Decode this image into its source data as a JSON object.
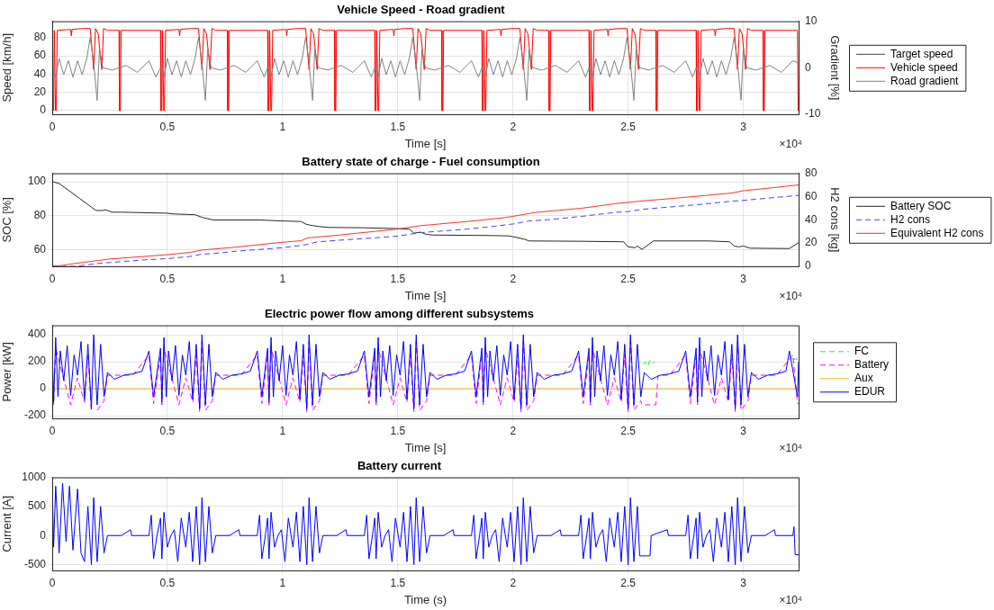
{
  "chart_data": [
    {
      "type": "line",
      "title": "Vehicle Speed - Road gradient",
      "xlabel": "Time [s]",
      "ylabel": "Speed [km/h]",
      "y2label": "Gradient [%]",
      "xlim": [
        0,
        3.24
      ],
      "xticks": [
        0,
        0.5,
        1,
        1.5,
        2,
        2.5,
        3
      ],
      "ylim": [
        -4,
        98
      ],
      "yticks": [
        0,
        20,
        40,
        60,
        80
      ],
      "y2lim": [
        -10,
        10
      ],
      "y2ticks": [
        -10,
        0,
        10
      ],
      "grid": true,
      "legend": "right",
      "annotations": [
        "×10⁴"
      ],
      "series": [
        {
          "name": "Target speed",
          "color": "#404040"
        },
        {
          "name": "Vehicle speed",
          "color": "#ff0000",
          "x": [
            0,
            0.002,
            0.006,
            0.009,
            0.014,
            0.017,
            0.022,
            0.08,
            0.083,
            0.086,
            0.13,
            0.165,
            0.18,
            0.188,
            0.2,
            0.215,
            0.223,
            0.24,
            0.29,
            0.292,
            0.296,
            0.299,
            0.47,
            0.472,
            0.476,
            0.479,
            0.484,
            0.487,
            0.492,
            0.55,
            0.553,
            0.556,
            0.6,
            0.635,
            0.65,
            0.658,
            0.67,
            0.685,
            0.693,
            0.71,
            0.76,
            0.762,
            0.766,
            0.769,
            0.935,
            0.937,
            0.941,
            0.944,
            0.949,
            0.952,
            0.957,
            1.015,
            1.018,
            1.021,
            1.065,
            1.1,
            1.115,
            1.123,
            1.135,
            1.15,
            1.158,
            1.175,
            1.225,
            1.227,
            1.231,
            1.234,
            1.4,
            1.402,
            1.406,
            1.409,
            1.414,
            1.417,
            1.422,
            1.48,
            1.483,
            1.486,
            1.53,
            1.565,
            1.58,
            1.588,
            1.6,
            1.615,
            1.623,
            1.64,
            1.69,
            1.692,
            1.696,
            1.699,
            1.865,
            1.867,
            1.871,
            1.874,
            1.879,
            1.882,
            1.887,
            1.945,
            1.948,
            1.951,
            1.995,
            2.03,
            2.045,
            2.053,
            2.065,
            2.08,
            2.088,
            2.105,
            2.155,
            2.157,
            2.161,
            2.164,
            2.33,
            2.332,
            2.336,
            2.339,
            2.344,
            2.347,
            2.352,
            2.41,
            2.413,
            2.416,
            2.46,
            2.495,
            2.51,
            2.518,
            2.53,
            2.545,
            2.553,
            2.57,
            2.62,
            2.622,
            2.626,
            2.629,
            2.795,
            2.797,
            2.801,
            2.804,
            2.809,
            2.812,
            2.817,
            2.875,
            2.878,
            2.881,
            2.925,
            2.96,
            2.975,
            2.983,
            2.995,
            3.01,
            3.018,
            3.035,
            3.085,
            3.087,
            3.091,
            3.094,
            3.235,
            3.238,
            3.24
          ],
          "values": [
            88,
            0,
            0,
            88,
            0,
            0,
            88,
            89,
            82,
            89,
            90,
            90,
            45,
            90,
            84,
            45,
            90,
            88,
            88,
            0,
            0,
            88,
            88,
            0,
            0,
            88,
            0,
            0,
            88,
            89,
            82,
            89,
            90,
            90,
            45,
            90,
            84,
            45,
            90,
            88,
            88,
            0,
            0,
            88,
            88,
            0,
            0,
            88,
            0,
            0,
            88,
            89,
            82,
            89,
            90,
            90,
            45,
            90,
            84,
            45,
            90,
            88,
            88,
            0,
            0,
            88,
            88,
            0,
            0,
            88,
            0,
            0,
            88,
            89,
            82,
            89,
            90,
            90,
            45,
            90,
            84,
            45,
            90,
            88,
            88,
            0,
            0,
            88,
            88,
            0,
            0,
            88,
            0,
            0,
            88,
            89,
            82,
            89,
            90,
            90,
            45,
            90,
            84,
            45,
            90,
            88,
            88,
            0,
            0,
            88,
            88,
            0,
            0,
            88,
            0,
            0,
            88,
            89,
            82,
            89,
            90,
            90,
            45,
            90,
            84,
            45,
            90,
            88,
            88,
            0,
            0,
            88,
            88,
            0,
            0,
            88,
            0,
            0,
            88,
            89,
            82,
            89,
            90,
            90,
            45,
            90,
            84,
            45,
            90,
            88,
            88,
            0,
            0,
            88,
            88,
            0,
            0
          ]
        },
        {
          "name": "Road gradient",
          "color": "#808080",
          "axis": "y2",
          "x": [
            0,
            0.015,
            0.03,
            0.05,
            0.07,
            0.09,
            0.11,
            0.13,
            0.15,
            0.165,
            0.18,
            0.195,
            0.205,
            0.22,
            0.26,
            0.32,
            0.37,
            0.42,
            0.45,
            0.47,
            0.485,
            0.5,
            0.52,
            0.54,
            0.56,
            0.58,
            0.6,
            0.62,
            0.635,
            0.65,
            0.665,
            0.675,
            0.69,
            0.73,
            0.79,
            0.84,
            0.89,
            0.92,
            0.935,
            0.95,
            0.965,
            0.985,
            1.005,
            1.025,
            1.045,
            1.065,
            1.085,
            1.1,
            1.115,
            1.13,
            1.14,
            1.155,
            1.195,
            1.255,
            1.305,
            1.355,
            1.385,
            1.4,
            1.415,
            1.43,
            1.45,
            1.47,
            1.49,
            1.51,
            1.53,
            1.55,
            1.565,
            1.58,
            1.595,
            1.605,
            1.62,
            1.66,
            1.72,
            1.77,
            1.82,
            1.85,
            1.865,
            1.88,
            1.895,
            1.915,
            1.935,
            1.955,
            1.975,
            1.995,
            2.015,
            2.03,
            2.045,
            2.06,
            2.07,
            2.085,
            2.125,
            2.185,
            2.235,
            2.285,
            2.315,
            2.33,
            2.345,
            2.36,
            2.38,
            2.4,
            2.42,
            2.44,
            2.46,
            2.48,
            2.495,
            2.51,
            2.525,
            2.535,
            2.55,
            2.59,
            2.65,
            2.7,
            2.75,
            2.78,
            2.795,
            2.81,
            2.825,
            2.845,
            2.865,
            2.885,
            2.905,
            2.925,
            2.945,
            2.96,
            2.975,
            2.99,
            3,
            3.015,
            3.055,
            3.115,
            3.165,
            3.215,
            3.24
          ],
          "values": [
            0,
            -2,
            2,
            -1.5,
            1.5,
            -2,
            1.5,
            -1.5,
            2,
            6.5,
            1,
            -7,
            4,
            0,
            -0.5,
            0.5,
            -1,
            1.5,
            -2,
            0,
            -2,
            2,
            -1.5,
            1.5,
            -2,
            1.5,
            -1.5,
            2,
            6.5,
            1,
            -7,
            4,
            0,
            -0.5,
            0.5,
            -1,
            1.5,
            -2,
            0,
            -2,
            2,
            -1.5,
            1.5,
            -2,
            1.5,
            -1.5,
            2,
            6.5,
            1,
            -7,
            4,
            0,
            -0.5,
            0.5,
            -1,
            1.5,
            -2,
            0,
            -2,
            2,
            -1.5,
            1.5,
            -2,
            1.5,
            -1.5,
            2,
            6.5,
            1,
            -7,
            4,
            0,
            -0.5,
            0.5,
            -1,
            1.5,
            -2,
            0,
            -2,
            2,
            -1.5,
            1.5,
            -2,
            1.5,
            -1.5,
            2,
            6.5,
            1,
            -7,
            4,
            0,
            -0.5,
            0.5,
            -1,
            1.5,
            -2,
            0,
            -2,
            2,
            -1.5,
            1.5,
            -2,
            1.5,
            -1.5,
            2,
            6.5,
            1,
            -7,
            4,
            0,
            -0.5,
            0.5,
            -1,
            1.5,
            -2,
            0,
            -2,
            2,
            -1.5,
            1.5,
            -2,
            1.5,
            -1.5,
            2,
            6.5,
            1,
            -7,
            4,
            0,
            -0.5,
            0.5,
            -1,
            1.5,
            1
          ]
        }
      ]
    },
    {
      "type": "line",
      "title": "Battery state of charge - Fuel consumption",
      "xlabel": "Time [s]",
      "ylabel": "SOC [%]",
      "y2label": "H2 cons [kg]",
      "xlim": [
        0,
        3.24
      ],
      "xticks": [
        0,
        0.5,
        1,
        1.5,
        2,
        2.5,
        3
      ],
      "ylim": [
        50,
        105
      ],
      "yticks": [
        60,
        80,
        100
      ],
      "y2lim": [
        0,
        80
      ],
      "y2ticks": [
        0,
        20,
        40,
        60,
        80
      ],
      "grid": true,
      "legend": "right",
      "annotations": [
        "×10⁴"
      ],
      "series": [
        {
          "name": "Battery SOC",
          "color": "#262626",
          "x": [
            0,
            0.03,
            0.07,
            0.12,
            0.17,
            0.19,
            0.22,
            0.23,
            0.26,
            0.3,
            0.5,
            0.52,
            0.62,
            0.65,
            0.67,
            0.7,
            0.9,
            1,
            1.08,
            1.1,
            1.12,
            1.16,
            1.2,
            1.35,
            1.5,
            1.55,
            1.57,
            1.6,
            1.62,
            1.65,
            1.9,
            1.98,
            2,
            2.05,
            2.07,
            2.3,
            2.48,
            2.5,
            2.53,
            2.54,
            2.56,
            2.59,
            2.61,
            2.85,
            2.94,
            2.96,
            2.98,
            3,
            3.03,
            3.2,
            3.24
          ],
          "values": [
            100,
            99,
            95,
            90,
            85,
            83,
            83,
            83.5,
            82,
            82,
            81.4,
            81,
            80.5,
            79,
            78.3,
            77.4,
            77.4,
            76.8,
            76.5,
            75,
            74.3,
            73.5,
            73,
            72.8,
            72.3,
            72,
            69.6,
            70.2,
            69,
            68.5,
            68.2,
            68,
            67.5,
            66,
            65,
            64.8,
            64.5,
            61.5,
            61,
            62,
            60,
            63,
            65,
            65,
            64.5,
            62,
            61.5,
            62,
            60.7,
            60.5,
            64
          ]
        },
        {
          "name": "H2 cons",
          "color": "#4040ff",
          "axis": "y2",
          "line_style": "dashed",
          "x": [
            0,
            0.1,
            0.2,
            0.3,
            0.4,
            0.5,
            0.6,
            0.65,
            0.7,
            0.8,
            0.9,
            1,
            1.1,
            1.15,
            1.25,
            1.4,
            1.5,
            1.6,
            1.7,
            1.8,
            1.9,
            2,
            2.07,
            2.15,
            2.3,
            2.45,
            2.5,
            2.56,
            2.65,
            2.8,
            2.95,
            3,
            3.1,
            3.24
          ],
          "values": [
            0,
            0,
            2.5,
            4,
            5.5,
            6.6,
            8.5,
            10.5,
            11,
            13,
            14.5,
            16,
            18.5,
            21,
            22.5,
            24.5,
            26,
            29,
            30.5,
            32,
            34,
            36.4,
            39,
            40,
            43,
            46.5,
            47,
            49,
            50.5,
            53,
            56,
            56.7,
            58.5,
            61
          ]
        },
        {
          "name": "Equivalent H2 cons",
          "color": "#ff3030",
          "axis": "y2",
          "x": [
            0,
            0.05,
            0.1,
            0.2,
            0.25,
            0.4,
            0.5,
            0.6,
            0.65,
            0.8,
            1,
            1.08,
            1.11,
            1.2,
            1.5,
            1.6,
            1.8,
            1.95,
            2,
            2.1,
            2.3,
            2.45,
            2.55,
            2.7,
            2.95,
            3,
            3.1,
            3.24
          ],
          "values": [
            0,
            1,
            2.5,
            5,
            6.3,
            8.5,
            10,
            12,
            14,
            16.5,
            20.7,
            22,
            24.5,
            26,
            32,
            35,
            38.5,
            41.5,
            43,
            46.4,
            50,
            54,
            56,
            58.5,
            63,
            65,
            67,
            70
          ]
        }
      ]
    },
    {
      "type": "line",
      "title": "Electric power flow among different subsystems",
      "xlabel": "Time [s]",
      "ylabel": "Power [kW]",
      "xlim": [
        0,
        3.24
      ],
      "xticks": [
        0,
        0.5,
        1,
        1.5,
        2,
        2.5,
        3
      ],
      "ylim": [
        -220,
        470
      ],
      "yticks": [
        -200,
        0,
        200,
        400
      ],
      "grid": true,
      "legend": "right",
      "annotations": [
        "×10⁴"
      ],
      "series": [
        {
          "name": "FC",
          "color": "#00ff00",
          "line_style": "dashed",
          "x": [
            2.565,
            2.575,
            2.585,
            2.595,
            2.605,
            2.615,
            2.62,
            3.212,
            3.235
          ],
          "values": [
            180,
            200,
            170,
            210,
            190,
            200,
            null,
            220,
            220
          ]
        },
        {
          "name": "Battery",
          "color": "#ff00ff",
          "line_style": "dashed",
          "x": [
            0,
            0.006,
            0.015,
            0.08,
            0.11,
            0.14,
            0.155,
            0.17,
            0.18,
            0.195,
            0.225,
            0.24,
            0.35,
            0.42,
            0.44,
            0.47,
            0.476,
            0.485,
            0.55,
            0.58,
            0.61,
            0.625,
            0.64,
            0.65,
            0.665,
            0.695,
            0.71,
            0.82,
            0.89,
            0.91,
            0.935,
            0.941,
            0.95,
            1.015,
            1.045,
            1.075,
            1.09,
            1.105,
            1.115,
            1.13,
            1.16,
            1.175,
            1.285,
            1.355,
            1.375,
            1.4,
            1.406,
            1.415,
            1.48,
            1.51,
            1.54,
            1.555,
            1.57,
            1.58,
            1.595,
            1.625,
            1.64,
            1.75,
            1.82,
            1.84,
            1.865,
            1.871,
            1.88,
            1.945,
            1.975,
            2.005,
            2.02,
            2.035,
            2.045,
            2.06,
            2.09,
            2.105,
            2.215,
            2.285,
            2.305,
            2.33,
            2.336,
            2.345,
            2.41,
            2.44,
            2.47,
            2.485,
            2.5,
            2.51,
            2.525,
            2.555,
            2.56,
            2.62,
            2.63,
            2.68,
            2.75,
            2.77,
            2.795,
            2.801,
            2.81,
            2.875,
            2.905,
            2.935,
            2.95,
            2.965,
            2.975,
            2.99,
            3.02,
            3.035,
            3.145,
            3.215,
            3.235,
            3.24
          ],
          "values": [
            250,
            -120,
            300,
            -120,
            80,
            -100,
            250,
            -170,
            null,
            -160,
            -90,
            100,
            100,
            250,
            -110,
            250,
            -120,
            300,
            -120,
            80,
            -100,
            250,
            -170,
            350,
            -160,
            -90,
            100,
            100,
            250,
            -110,
            250,
            -120,
            300,
            -120,
            80,
            -100,
            250,
            -170,
            350,
            -160,
            -90,
            100,
            100,
            250,
            -110,
            250,
            -120,
            300,
            -120,
            80,
            -100,
            250,
            -170,
            350,
            -160,
            -90,
            100,
            100,
            250,
            -110,
            250,
            -120,
            300,
            -120,
            80,
            -100,
            250,
            -170,
            350,
            -160,
            -90,
            100,
            100,
            250,
            -110,
            250,
            -120,
            300,
            -120,
            80,
            -100,
            250,
            -170,
            350,
            -160,
            -90,
            -120,
            -120,
            100,
            100,
            250,
            -110,
            250,
            -120,
            300,
            -120,
            80,
            -100,
            250,
            -170,
            350,
            -160,
            -90,
            100,
            100,
            250,
            -110,
            -110
          ]
        },
        {
          "name": "Aux",
          "color": "#edb120",
          "x": [
            0,
            3.24
          ],
          "values": [
            0,
            0
          ]
        },
        {
          "name": "EDUR",
          "color": "#0000ff",
          "x": [
            0,
            0.006,
            0.015,
            0.025,
            0.035,
            0.05,
            0.065,
            0.08,
            0.095,
            0.11,
            0.125,
            0.14,
            0.155,
            0.17,
            0.18,
            0.195,
            0.21,
            0.225,
            0.24,
            0.27,
            0.31,
            0.35,
            0.39,
            0.42,
            0.44,
            0.47,
            0.476,
            0.485,
            0.495,
            0.505,
            0.52,
            0.535,
            0.55,
            0.565,
            0.58,
            0.595,
            0.61,
            0.625,
            0.64,
            0.65,
            0.665,
            0.68,
            0.695,
            0.71,
            0.74,
            0.78,
            0.82,
            0.86,
            0.89,
            0.91,
            0.935,
            0.941,
            0.95,
            0.96,
            0.97,
            0.985,
            1,
            1.015,
            1.03,
            1.045,
            1.06,
            1.075,
            1.09,
            1.105,
            1.115,
            1.13,
            1.145,
            1.16,
            1.175,
            1.205,
            1.245,
            1.285,
            1.325,
            1.355,
            1.375,
            1.4,
            1.406,
            1.415,
            1.425,
            1.435,
            1.45,
            1.465,
            1.48,
            1.495,
            1.51,
            1.525,
            1.54,
            1.555,
            1.57,
            1.58,
            1.595,
            1.61,
            1.625,
            1.64,
            1.67,
            1.71,
            1.75,
            1.79,
            1.82,
            1.84,
            1.865,
            1.871,
            1.88,
            1.89,
            1.9,
            1.915,
            1.93,
            1.945,
            1.96,
            1.975,
            1.99,
            2.005,
            2.02,
            2.035,
            2.045,
            2.06,
            2.075,
            2.09,
            2.105,
            2.135,
            2.175,
            2.215,
            2.255,
            2.285,
            2.305,
            2.33,
            2.336,
            2.345,
            2.355,
            2.365,
            2.38,
            2.395,
            2.41,
            2.425,
            2.44,
            2.455,
            2.47,
            2.485,
            2.5,
            2.51,
            2.525,
            2.54,
            2.555,
            2.57,
            2.6,
            2.64,
            2.68,
            2.72,
            2.75,
            2.77,
            2.795,
            2.801,
            2.81,
            2.82,
            2.83,
            2.845,
            2.86,
            2.875,
            2.89,
            2.905,
            2.92,
            2.935,
            2.95,
            2.965,
            2.975,
            2.99,
            3.005,
            3.02,
            3.035,
            3.065,
            3.105,
            3.145,
            3.185,
            3.2,
            3.235,
            3.24
          ],
          "values": [
            300,
            -100,
            380,
            -60,
            280,
            60,
            320,
            -50,
            250,
            100,
            350,
            -80,
            330,
            -150,
            400,
            -120,
            330,
            -60,
            120,
            70,
            100,
            110,
            130,
            280,
            -60,
            300,
            -100,
            380,
            -60,
            280,
            60,
            320,
            -50,
            250,
            100,
            350,
            -80,
            330,
            -150,
            400,
            -120,
            330,
            -60,
            120,
            70,
            100,
            110,
            130,
            280,
            -60,
            300,
            -100,
            380,
            -60,
            280,
            60,
            320,
            -50,
            250,
            100,
            350,
            -80,
            330,
            -150,
            400,
            -120,
            330,
            -60,
            120,
            70,
            100,
            110,
            130,
            280,
            -60,
            300,
            -100,
            380,
            -60,
            280,
            60,
            320,
            -50,
            250,
            100,
            350,
            -80,
            330,
            -150,
            400,
            -120,
            330,
            -60,
            120,
            70,
            100,
            110,
            130,
            280,
            -60,
            300,
            -100,
            380,
            -60,
            280,
            60,
            320,
            -50,
            250,
            100,
            350,
            -80,
            330,
            -150,
            400,
            -120,
            330,
            -60,
            120,
            70,
            100,
            110,
            130,
            280,
            -60,
            300,
            -100,
            380,
            -60,
            280,
            60,
            320,
            -50,
            250,
            100,
            350,
            -80,
            330,
            -150,
            400,
            -120,
            330,
            -60,
            120,
            70,
            100,
            110,
            130,
            280,
            -60,
            300,
            -100,
            380,
            -60,
            280,
            60,
            320,
            -50,
            250,
            100,
            350,
            -80,
            330,
            -150,
            400,
            -120,
            330,
            -60,
            120,
            70,
            100,
            110,
            130,
            280,
            -60,
            200
          ]
        }
      ]
    },
    {
      "type": "line",
      "title": "Battery current",
      "xlabel": "Time (s)",
      "ylabel": "Current [A]",
      "xlim": [
        0,
        3.24
      ],
      "xticks": [
        0,
        0.5,
        1,
        1.5,
        2,
        2.5,
        3
      ],
      "ylim": [
        -600,
        1000
      ],
      "yticks": [
        -500,
        0,
        500,
        1000
      ],
      "grid": true,
      "annotations": [
        "×10⁴"
      ],
      "series": [
        {
          "color": "#0000ff",
          "x": [
            0,
            0.006,
            0.015,
            0.03,
            0.045,
            0.06,
            0.075,
            0.09,
            0.11,
            0.125,
            0.14,
            0.155,
            0.17,
            0.18,
            0.195,
            0.21,
            0.225,
            0.24,
            0.3,
            0.34,
            0.345,
            0.42,
            0.43,
            0.44,
            0.455,
            0.47,
            0.476,
            0.485,
            0.5,
            0.515,
            0.53,
            0.545,
            0.56,
            0.58,
            0.595,
            0.61,
            0.625,
            0.64,
            0.65,
            0.665,
            0.68,
            0.695,
            0.71,
            0.77,
            0.81,
            0.815,
            0.89,
            0.9,
            0.91,
            0.925,
            0.935,
            0.941,
            0.95,
            0.965,
            0.98,
            0.995,
            1.01,
            1.025,
            1.045,
            1.06,
            1.075,
            1.09,
            1.105,
            1.115,
            1.13,
            1.145,
            1.16,
            1.175,
            1.235,
            1.275,
            1.28,
            1.355,
            1.365,
            1.375,
            1.39,
            1.4,
            1.406,
            1.415,
            1.43,
            1.445,
            1.46,
            1.475,
            1.49,
            1.51,
            1.525,
            1.54,
            1.555,
            1.57,
            1.58,
            1.595,
            1.61,
            1.625,
            1.64,
            1.7,
            1.74,
            1.745,
            1.82,
            1.83,
            1.84,
            1.855,
            1.865,
            1.871,
            1.88,
            1.895,
            1.91,
            1.925,
            1.94,
            1.955,
            1.975,
            1.99,
            2.005,
            2.02,
            2.035,
            2.045,
            2.06,
            2.075,
            2.09,
            2.105,
            2.165,
            2.205,
            2.21,
            2.285,
            2.295,
            2.305,
            2.32,
            2.33,
            2.336,
            2.345,
            2.36,
            2.375,
            2.39,
            2.405,
            2.42,
            2.44,
            2.455,
            2.47,
            2.485,
            2.5,
            2.51,
            2.525,
            2.54,
            2.55,
            2.595,
            2.6,
            2.67,
            2.675,
            2.75,
            2.76,
            2.77,
            2.785,
            2.795,
            2.801,
            2.81,
            2.825,
            2.84,
            2.855,
            2.87,
            2.885,
            2.905,
            2.92,
            2.935,
            2.95,
            2.965,
            2.975,
            2.99,
            3.005,
            3.02,
            3.035,
            3.095,
            3.135,
            3.14,
            3.215,
            3.22,
            3.225,
            3.24
          ],
          "values": [
            900,
            -200,
            850,
            -300,
            900,
            -100,
            850,
            -250,
            800,
            -300,
            -450,
            500,
            -500,
            650,
            -450,
            500,
            -300,
            0,
            0,
            100,
            0,
            0,
            350,
            -400,
            0,
            300,
            -400,
            400,
            -200,
            0,
            100,
            -450,
            300,
            -200,
            400,
            -450,
            500,
            -500,
            650,
            -450,
            500,
            -300,
            0,
            0,
            100,
            0,
            0,
            350,
            -400,
            0,
            300,
            -400,
            400,
            -200,
            0,
            100,
            -450,
            300,
            -200,
            400,
            -450,
            500,
            -500,
            650,
            -450,
            500,
            -300,
            0,
            0,
            100,
            0,
            0,
            350,
            -400,
            0,
            300,
            -400,
            400,
            -200,
            0,
            100,
            -450,
            300,
            -200,
            400,
            -450,
            500,
            -500,
            650,
            -450,
            500,
            -300,
            0,
            0,
            100,
            0,
            0,
            350,
            -400,
            0,
            300,
            -400,
            400,
            -200,
            0,
            100,
            -450,
            300,
            -200,
            400,
            -450,
            500,
            -500,
            650,
            -450,
            500,
            -300,
            0,
            0,
            100,
            0,
            0,
            350,
            -400,
            0,
            300,
            -400,
            400,
            -200,
            0,
            100,
            -450,
            300,
            -200,
            400,
            -450,
            500,
            -500,
            650,
            -450,
            500,
            -350,
            -350,
            0,
            100,
            0,
            0,
            350,
            -400,
            0,
            300,
            -400,
            400,
            -200,
            0,
            100,
            -450,
            300,
            -200,
            400,
            -450,
            500,
            -500,
            650,
            -450,
            500,
            -300,
            0,
            0,
            100,
            0,
            0,
            150,
            -330,
            -330
          ]
        }
      ]
    }
  ]
}
